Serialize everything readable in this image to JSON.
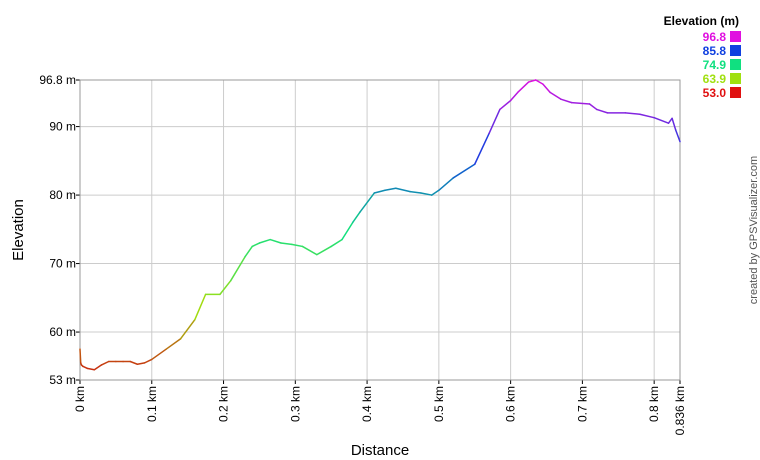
{
  "chart_data": {
    "type": "line",
    "title": "",
    "xlabel": "Distance",
    "ylabel": "Elevation",
    "xlim": [
      0,
      0.836
    ],
    "ylim": [
      53.0,
      96.8
    ],
    "x_ticks": [
      {
        "value": 0,
        "label": "0 km"
      },
      {
        "value": 0.1,
        "label": "0.1 km"
      },
      {
        "value": 0.2,
        "label": "0.2 km"
      },
      {
        "value": 0.3,
        "label": "0.3 km"
      },
      {
        "value": 0.4,
        "label": "0.4 km"
      },
      {
        "value": 0.5,
        "label": "0.5 km"
      },
      {
        "value": 0.6,
        "label": "0.6 km"
      },
      {
        "value": 0.7,
        "label": "0.7 km"
      },
      {
        "value": 0.8,
        "label": "0.8 km"
      },
      {
        "value": 0.836,
        "label": "0.836 km"
      }
    ],
    "y_ticks": [
      {
        "value": 53.0,
        "label": "53 m"
      },
      {
        "value": 60,
        "label": "60 m"
      },
      {
        "value": 70,
        "label": "70 m"
      },
      {
        "value": 80,
        "label": "80 m"
      },
      {
        "value": 90,
        "label": "90 m"
      },
      {
        "value": 96.8,
        "label": "96.8 m"
      }
    ],
    "grid": true,
    "legend": {
      "title": "Elevation (m)",
      "placement": "top-right",
      "entries": [
        {
          "label": "96.8",
          "color": "#e010e0"
        },
        {
          "label": "85.8",
          "color": "#1040e0"
        },
        {
          "label": "74.9",
          "color": "#10e080"
        },
        {
          "label": "63.9",
          "color": "#a0e010"
        },
        {
          "label": "53.0",
          "color": "#e01010"
        }
      ]
    },
    "series": [
      {
        "x": [
          0,
          0.001,
          0.002,
          0.004,
          0.01,
          0.02,
          0.03,
          0.04,
          0.05,
          0.06,
          0.07,
          0.08,
          0.09,
          0.1,
          0.12,
          0.14,
          0.16,
          0.175,
          0.195,
          0.21,
          0.23,
          0.24,
          0.25,
          0.265,
          0.28,
          0.295,
          0.31,
          0.33,
          0.35,
          0.365,
          0.38,
          0.39,
          0.41,
          0.425,
          0.44,
          0.46,
          0.475,
          0.49,
          0.5,
          0.52,
          0.55,
          0.57,
          0.585,
          0.6,
          0.61,
          0.625,
          0.635,
          0.645,
          0.655,
          0.67,
          0.685,
          0.71,
          0.72,
          0.735,
          0.76,
          0.78,
          0.8,
          0.82,
          0.825,
          0.83,
          0.836
        ],
        "y": [
          57.5,
          55.5,
          55.2,
          55.0,
          54.7,
          54.5,
          55.2,
          55.7,
          55.7,
          55.7,
          55.7,
          55.3,
          55.5,
          56.0,
          57.5,
          59.0,
          61.8,
          65.5,
          65.5,
          67.5,
          71.0,
          72.5,
          73.0,
          73.5,
          73.0,
          72.8,
          72.5,
          71.3,
          72.5,
          73.5,
          76.0,
          77.5,
          80.3,
          80.7,
          81.0,
          80.5,
          80.3,
          80.0,
          80.7,
          82.5,
          84.5,
          89.0,
          92.5,
          93.8,
          95.0,
          96.5,
          96.8,
          96.2,
          95.0,
          94.0,
          93.5,
          93.3,
          92.5,
          92.0,
          92.0,
          91.8,
          91.3,
          90.5,
          91.2,
          89.5,
          87.8
        ]
      }
    ],
    "color_scale": {
      "values": [
        53.0,
        63.9,
        74.9,
        85.8,
        96.8
      ],
      "colors": [
        "#d01010",
        "#a0e010",
        "#10e080",
        "#1040e0",
        "#e010e0"
      ]
    }
  },
  "credit": "created by GPSVisualizer.com"
}
